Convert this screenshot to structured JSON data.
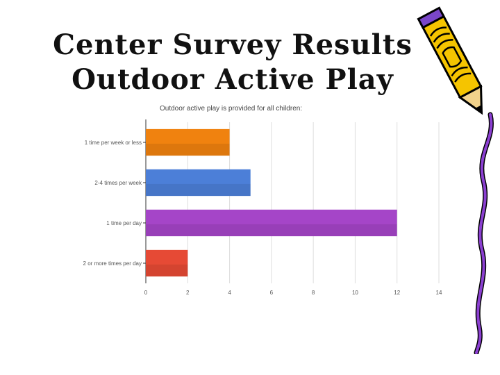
{
  "slide": {
    "title_line1": "Center Survey Results",
    "title_line2": "Outdoor Active Play"
  },
  "decorations": {
    "pencil": "pencil-icon",
    "ribbon": "squiggle-ribbon"
  },
  "chart_data": {
    "type": "bar",
    "orientation": "horizontal",
    "title": "Outdoor active play is provided for all children:",
    "categories": [
      "1 time per week or less",
      "2-4 times per week",
      "1 time per day",
      "2 or more times per day"
    ],
    "values": [
      4,
      5,
      12,
      2
    ],
    "colors": [
      "#f0820f",
      "#4c7fd8",
      "#a545c8",
      "#e64a35"
    ],
    "xlim": [
      0,
      14
    ],
    "xticks": [
      0,
      2,
      4,
      6,
      8,
      10,
      12,
      14
    ],
    "grid": true,
    "xlabel": "",
    "ylabel": ""
  }
}
